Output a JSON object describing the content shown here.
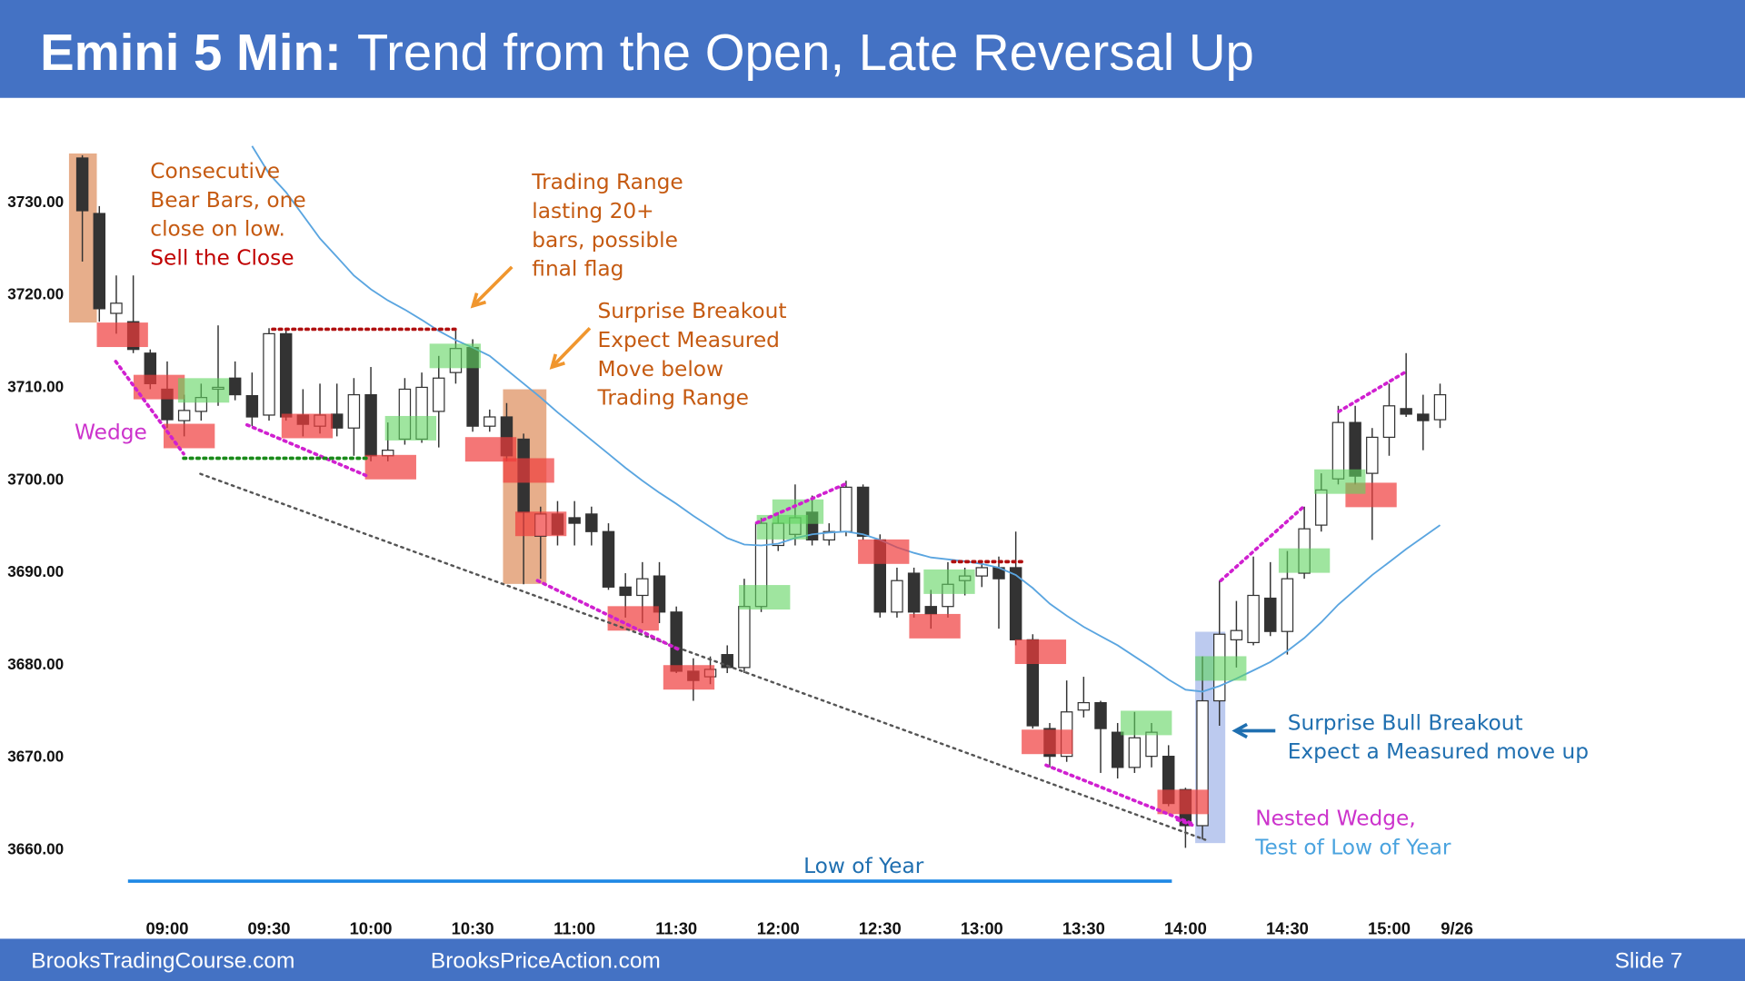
{
  "header": {
    "title_bold": "Emini 5 Min:",
    "title_rest": "Trend from the Open, Late Reversal Up"
  },
  "footer": {
    "left": "BrooksTradingCourse.com",
    "center": "BrooksPriceAction.com",
    "slide": "Slide  7"
  },
  "chart_data": {
    "type": "candlestick",
    "categories": [
      null,
      null,
      null,
      null,
      null,
      "09:00",
      null,
      null,
      null,
      null,
      null,
      "09:30",
      null,
      null,
      null,
      null,
      null,
      "10:00",
      null,
      null,
      null,
      null,
      null,
      "10:30",
      null,
      null,
      null,
      null,
      null,
      "11:00",
      null,
      null,
      null,
      null,
      null,
      "11:30",
      null,
      null,
      null,
      null,
      null,
      "12:00",
      null,
      null,
      null,
      null,
      null,
      "12:30",
      null,
      null,
      null,
      null,
      null,
      "13:00",
      null,
      null,
      null,
      null,
      null,
      "13:30",
      null,
      null,
      null,
      null,
      null,
      "14:00",
      null,
      null,
      null,
      null,
      null,
      "14:30",
      null,
      null,
      null,
      null,
      null,
      "15:00",
      null,
      null,
      null,
      "9/26"
    ],
    "open": [
      3734.7,
      3728.7,
      3717.9,
      3717,
      3713.6,
      3709.7,
      3706.3,
      3707.3,
      3709.7,
      3710.9,
      3709,
      3706.9,
      3715.7,
      3706.9,
      3705.7,
      3707,
      3705.5,
      3709.1,
      3702.5,
      3704.3,
      3704.3,
      3707.3,
      3711.5,
      3714.2,
      3705.7,
      3706.7,
      3704.3,
      3693.8,
      3696.2,
      3695.8,
      3696.2,
      3694.3,
      3688.3,
      3687.4,
      3689.5,
      3685.6,
      3679.2,
      3678.6,
      3681,
      3679.6,
      3686.2,
      3692.8,
      3694,
      3696.4,
      3693.4,
      3694.3,
      3699.1,
      3693.4,
      3685.6,
      3689.8,
      3686.2,
      3686.2,
      3689,
      3689.5,
      3690.4,
      3690.4,
      3682.6,
      3673,
      3670,
      3675,
      3675.8,
      3672.6,
      3668.8,
      3670,
      3670,
      3666.4,
      3662.5,
      3676,
      3682.6,
      3682.3,
      3687.1,
      3683.5,
      3689.8,
      3695,
      3700,
      3706.1,
      3700.6,
      3704.5,
      3707.6,
      3707,
      3706.4,
      null
    ],
    "high": [
      3735,
      3729.5,
      3722,
      3722,
      3714,
      3712.7,
      3709.1,
      3710.3,
      3716.6,
      3712.7,
      3711.5,
      3716.3,
      3716.2,
      3709.7,
      3710.3,
      3710.3,
      3710.9,
      3712.1,
      3706.1,
      3710.9,
      3711.5,
      3713.3,
      3716.1,
      3715.1,
      3707.5,
      3708.2,
      3704.9,
      3697,
      3697.6,
      3697.6,
      3697,
      3695.2,
      3689.8,
      3691,
      3691,
      3686.2,
      3680.6,
      3680.8,
      3682,
      3689.2,
      3695.8,
      3696.4,
      3699.4,
      3698.2,
      3695.2,
      3699.8,
      3699.4,
      3694,
      3690.4,
      3690.4,
      3688,
      3691,
      3690.4,
      3691,
      3691.6,
      3694.3,
      3683.2,
      3673.6,
      3678.2,
      3678.6,
      3676,
      3673.6,
      3674.8,
      3673.6,
      3671.2,
      3666.6,
      3680.8,
      3689,
      3686.8,
      3691.6,
      3691,
      3692.2,
      3697,
      3700.6,
      3707.9,
      3707.9,
      3705.5,
      3710.3,
      3713.6,
      3709.1,
      3710.3,
      null
    ],
    "low": [
      3723.5,
      3717,
      3715.7,
      3713.6,
      3709.7,
      3705.5,
      3704.6,
      3706.3,
      3707.9,
      3708.5,
      3705.7,
      3706.3,
      3706.3,
      3704.6,
      3704.9,
      3704.6,
      3702.5,
      3701.9,
      3701.9,
      3703.7,
      3703.9,
      3703.4,
      3710.3,
      3705.1,
      3705.1,
      3701.9,
      3688.6,
      3689.2,
      3692.8,
      3692.8,
      3692.8,
      3688,
      3685,
      3684.4,
      3684.4,
      3679,
      3676,
      3677.8,
      3679,
      3679,
      3685.6,
      3692.2,
      3692.8,
      3692.8,
      3692.8,
      3693.8,
      3693.4,
      3685,
      3685,
      3685,
      3683.8,
      3685,
      3687.4,
      3688.3,
      3683.8,
      3682,
      3673,
      3668.8,
      3669.4,
      3674.2,
      3668.2,
      3667.6,
      3668.2,
      3668.8,
      3664.6,
      3660.1,
      3661,
      3673.3,
      3679.6,
      3682,
      3683,
      3681,
      3689.2,
      3694.3,
      3699.4,
      3699.4,
      3693.4,
      3702.5,
      3706.7,
      3703.1,
      3705.5,
      null
    ],
    "close": [
      3729,
      3718.4,
      3719,
      3714,
      3710.3,
      3706.4,
      3707.4,
      3708.8,
      3709.9,
      3709.1,
      3706.7,
      3715.7,
      3706.7,
      3705.9,
      3706.9,
      3705.5,
      3709.1,
      3702.5,
      3703.1,
      3709.7,
      3709.9,
      3710.9,
      3714.1,
      3705.7,
      3706.7,
      3702.5,
      3696.4,
      3696.2,
      3694,
      3695.2,
      3694.3,
      3688.3,
      3687.4,
      3689.2,
      3685.6,
      3679.2,
      3678.2,
      3679.4,
      3679.6,
      3686.2,
      3695.2,
      3695.2,
      3695.8,
      3693.4,
      3694.3,
      3699.1,
      3693.8,
      3685.6,
      3689,
      3685.6,
      3685.4,
      3688.6,
      3689.5,
      3690.4,
      3689.2,
      3682.6,
      3673.3,
      3670,
      3674.8,
      3675.8,
      3673,
      3668.8,
      3672,
      3672.6,
      3664.9,
      3662.5,
      3676,
      3683.2,
      3683.6,
      3687.4,
      3683.5,
      3689.2,
      3694.6,
      3698.8,
      3706.1,
      3700.3,
      3704.5,
      3707.9,
      3707,
      3706.3,
      3709.1,
      null
    ],
    "ema": [
      null,
      null,
      null,
      null,
      null,
      null,
      null,
      null,
      null,
      null,
      3736,
      3733,
      3731,
      3728.5,
      3726,
      3724,
      3722,
      3720.5,
      3719.3,
      3718.3,
      3717.2,
      3716,
      3715,
      3714.2,
      3713.3,
      3711.8,
      3710.3,
      3708.8,
      3707.2,
      3705.7,
      3704.2,
      3702.7,
      3701.2,
      3699.8,
      3698.5,
      3697.3,
      3696,
      3694.8,
      3693.6,
      3692.9,
      3692.8,
      3693,
      3693.6,
      3694,
      3694.2,
      3694.3,
      3694,
      3693.4,
      3692.6,
      3692,
      3691.5,
      3691.3,
      3691.1,
      3690.8,
      3690.4,
      3689.6,
      3688.2,
      3686.5,
      3685.2,
      3684,
      3683,
      3682,
      3680.8,
      3679.6,
      3678.3,
      3677.2,
      3677,
      3677.6,
      3678.4,
      3679.3,
      3680.2,
      3681.4,
      3682.8,
      3684.5,
      3686.4,
      3688,
      3689.6,
      3691,
      3692.4,
      3693.7,
      3695,
      null
    ],
    "ema_color": "#5aa5e0",
    "bull_color": "#ffffff",
    "bear_color": "#333333",
    "ylim": [
      3654,
      3740
    ],
    "yticks": [
      {
        "value": 3660,
        "label": "3660.00"
      },
      {
        "value": 3670,
        "label": "3670.00"
      },
      {
        "value": 3680,
        "label": "3680.00"
      },
      {
        "value": 3690,
        "label": "3690.00"
      },
      {
        "value": 3700,
        "label": "3700.00"
      },
      {
        "value": 3710,
        "label": "3710.00"
      },
      {
        "value": 3720,
        "label": "3720.00"
      },
      {
        "value": 3730,
        "label": "3730.00"
      }
    ],
    "grid": false,
    "low_of_year": {
      "label": "Low of Year",
      "value": 3656.5,
      "color": "#1e88e5"
    },
    "annotations": [
      {
        "lines": [
          "Consecutive",
          "Bear Bars, one",
          "close on low."
        ],
        "color": "#c55a11"
      },
      {
        "lines": [
          "Sell the Close"
        ],
        "color": "#c00000"
      },
      {
        "lines": [
          "Trading Range",
          "lasting 20+",
          "bars, possible",
          "final flag"
        ],
        "color": "#c55a11"
      },
      {
        "lines": [
          "Surprise Breakout",
          "Expect Measured",
          "Move below",
          "Trading Range"
        ],
        "color": "#c55a11"
      },
      {
        "lines": [
          "Wedge"
        ],
        "color": "#cc33cc"
      },
      {
        "lines": [
          "Surprise Bull Breakout",
          "Expect a Measured move up"
        ],
        "color": "#1f6fb0"
      },
      {
        "lines": [
          "Nested Wedge,"
        ],
        "color": "#cc33cc"
      },
      {
        "lines": [
          "Test of Low of Year"
        ],
        "color": "#4aa3df"
      }
    ]
  }
}
